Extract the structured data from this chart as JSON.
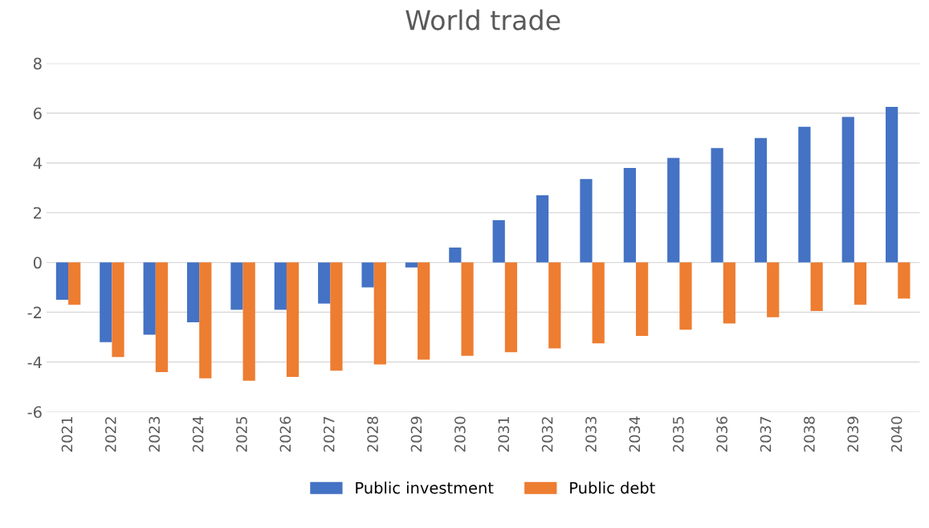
{
  "chart_data": {
    "type": "bar",
    "title": "World trade",
    "categories": [
      "2021",
      "2022",
      "2023",
      "2024",
      "2025",
      "2026",
      "2027",
      "2028",
      "2029",
      "2030",
      "2031",
      "2032",
      "2033",
      "2034",
      "2035",
      "2036",
      "2037",
      "2038",
      "2039",
      "2040"
    ],
    "series": [
      {
        "name": "Public investment",
        "color": "#4472c4",
        "values": [
          -1.5,
          -3.2,
          -2.9,
          -2.4,
          -1.9,
          -1.9,
          -1.65,
          -1.0,
          -0.2,
          0.6,
          1.7,
          2.7,
          3.35,
          3.8,
          4.2,
          4.6,
          5.0,
          5.45,
          5.85,
          6.25
        ]
      },
      {
        "name": "Public debt",
        "color": "#ed7d31",
        "values": [
          -1.7,
          -3.8,
          -4.4,
          -4.65,
          -4.75,
          -4.6,
          -4.35,
          -4.1,
          -3.9,
          -3.75,
          -3.6,
          -3.45,
          -3.25,
          -2.95,
          -2.7,
          -2.45,
          -2.2,
          -1.95,
          -1.7,
          -1.45
        ]
      }
    ],
    "ylim": [
      -6,
      8
    ],
    "yticks": [
      -6,
      -4,
      -2,
      0,
      2,
      4,
      6,
      8
    ],
    "grid": "y",
    "legend": "bottom"
  }
}
